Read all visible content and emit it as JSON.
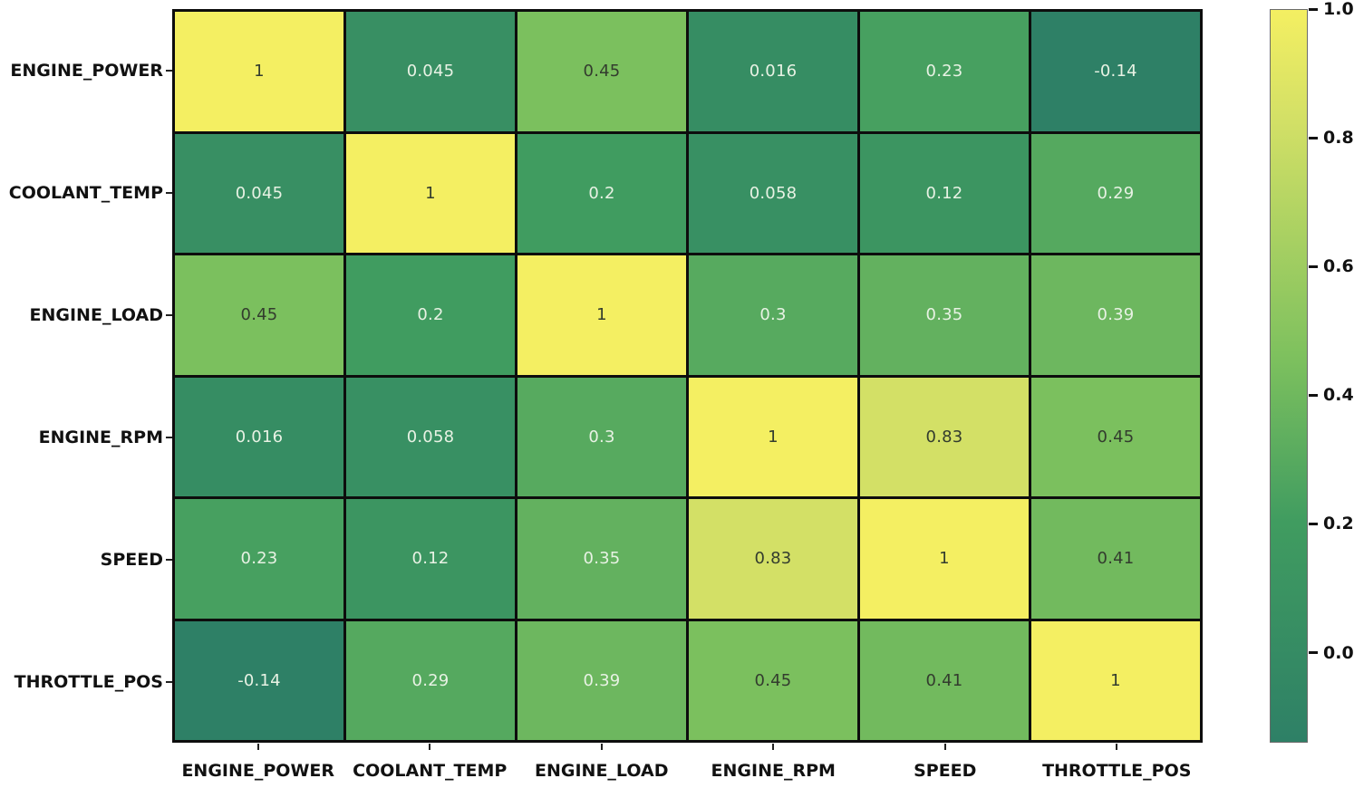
{
  "chart_data": {
    "type": "heatmap",
    "title": "",
    "xlabel": "",
    "ylabel": "",
    "categories": [
      "ENGINE_POWER",
      "COOLANT_TEMP",
      "ENGINE_LOAD",
      "ENGINE_RPM",
      "SPEED",
      "THROTTLE_POS"
    ],
    "matrix": [
      [
        1,
        0.045,
        0.45,
        0.016,
        0.23,
        -0.14
      ],
      [
        0.045,
        1,
        0.2,
        0.058,
        0.12,
        0.29
      ],
      [
        0.45,
        0.2,
        1,
        0.3,
        0.35,
        0.39
      ],
      [
        0.016,
        0.058,
        0.3,
        1,
        0.83,
        0.45
      ],
      [
        0.23,
        0.12,
        0.35,
        0.83,
        1,
        0.41
      ],
      [
        -0.14,
        0.29,
        0.39,
        0.45,
        0.41,
        1
      ]
    ],
    "cell_labels": [
      [
        "1",
        "0.045",
        "0.45",
        "0.016",
        "0.23",
        "-0.14"
      ],
      [
        "0.045",
        "1",
        "0.2",
        "0.058",
        "0.12",
        "0.29"
      ],
      [
        "0.45",
        "0.2",
        "1",
        "0.3",
        "0.35",
        "0.39"
      ],
      [
        "0.016",
        "0.058",
        "0.3",
        "1",
        "0.83",
        "0.45"
      ],
      [
        "0.23",
        "0.12",
        "0.35",
        "0.83",
        "1",
        "0.41"
      ],
      [
        "-0.14",
        "0.29",
        "0.39",
        "0.45",
        "0.41",
        "1"
      ]
    ],
    "colorbar": {
      "tick_labels": [
        "1.0",
        "0.8",
        "0.6",
        "0.4",
        "0.2",
        "0.0"
      ],
      "tick_values": [
        1.0,
        0.8,
        0.6,
        0.4,
        0.2,
        0.0
      ],
      "vmin": -0.14,
      "vmax": 1.0,
      "position": "right"
    },
    "colormap": {
      "name": "green-yellow-summer",
      "anchors": [
        [
          0.0,
          "#2e8066"
        ],
        [
          0.3,
          "#409c60"
        ],
        [
          0.52,
          "#7cc05e"
        ],
        [
          0.85,
          "#d3e066"
        ],
        [
          1.0,
          "#f4ef62"
        ]
      ]
    },
    "style": {
      "grid_line_color": "#0d0d0d",
      "annotation_dark_color": "#333c2e",
      "annotation_light_color": "#e8f2e4",
      "annotation_dark_threshold": 0.4,
      "tick_label_color": "#111111",
      "background_color": "#ffffff"
    },
    "legend": null,
    "grid": false
  }
}
